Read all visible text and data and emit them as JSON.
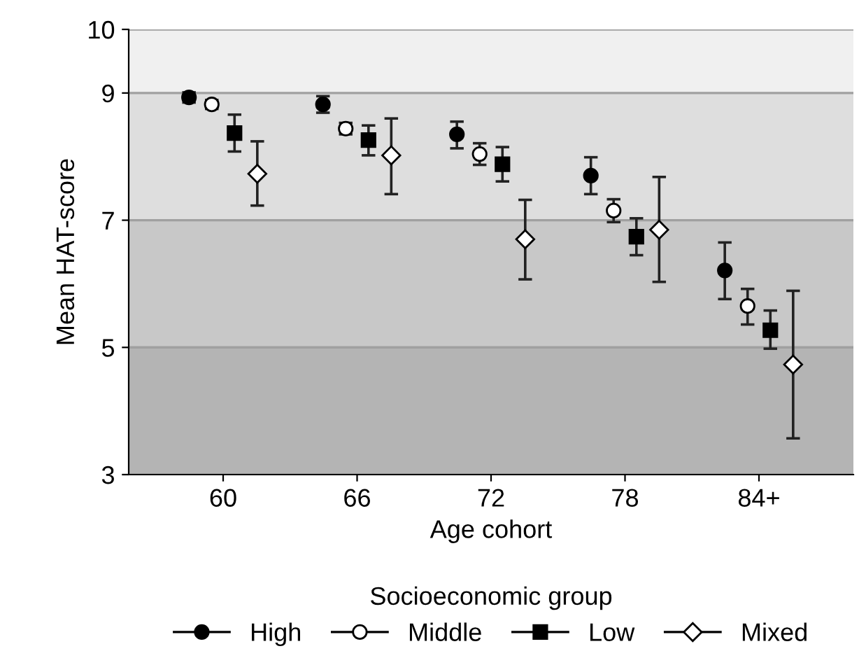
{
  "chart_data": {
    "type": "scatter",
    "xlabel": "Age cohort",
    "ylabel": "Mean HAT-score",
    "legend_title": "Socioeconomic group",
    "legend": "bottom",
    "grid": "y",
    "categories": [
      "60",
      "66",
      "72",
      "78",
      "84+"
    ],
    "ylim": [
      3,
      10
    ],
    "yticks": [
      3,
      5,
      7,
      9,
      10
    ],
    "bands": [
      {
        "axis": "y",
        "from": 3,
        "to": 5,
        "color": "#b4b4b4"
      },
      {
        "axis": "y",
        "from": 5,
        "to": 7,
        "color": "#c8c8c8"
      },
      {
        "axis": "y",
        "from": 7,
        "to": 9,
        "color": "#dedede"
      },
      {
        "axis": "y",
        "from": 9,
        "to": 10,
        "color": "#f0f0f0"
      }
    ],
    "series": [
      {
        "name": "High",
        "color": "#000000",
        "marker": "circle",
        "values": [
          8.93,
          8.82,
          8.35,
          7.7,
          6.21
        ],
        "errors": [
          [
            8.85,
            9.01
          ],
          [
            8.69,
            8.95
          ],
          [
            8.13,
            8.55
          ],
          [
            7.41,
            7.99
          ],
          [
            5.76,
            6.65
          ]
        ]
      },
      {
        "name": "Middle",
        "color": "#ffffff",
        "marker": "circle",
        "values": [
          8.82,
          8.44,
          8.04,
          7.15,
          5.65
        ],
        "errors": [
          [
            8.75,
            8.89
          ],
          [
            8.35,
            8.53
          ],
          [
            7.87,
            8.21
          ],
          [
            6.97,
            7.33
          ],
          [
            5.36,
            5.92
          ]
        ]
      },
      {
        "name": "Low",
        "color": "#000000",
        "marker": "square",
        "values": [
          8.37,
          8.26,
          7.88,
          6.74,
          5.27
        ],
        "errors": [
          [
            8.08,
            8.66
          ],
          [
            8.02,
            8.49
          ],
          [
            7.61,
            8.15
          ],
          [
            6.45,
            7.03
          ],
          [
            4.98,
            5.58
          ]
        ]
      },
      {
        "name": "Mixed",
        "color": "#ffffff",
        "marker": "diamond",
        "values": [
          7.73,
          8.02,
          6.7,
          6.85,
          4.73
        ],
        "errors": [
          [
            7.23,
            8.24
          ],
          [
            7.41,
            8.6
          ],
          [
            6.07,
            7.32
          ],
          [
            6.03,
            7.68
          ],
          [
            3.57,
            5.89
          ]
        ]
      }
    ]
  }
}
